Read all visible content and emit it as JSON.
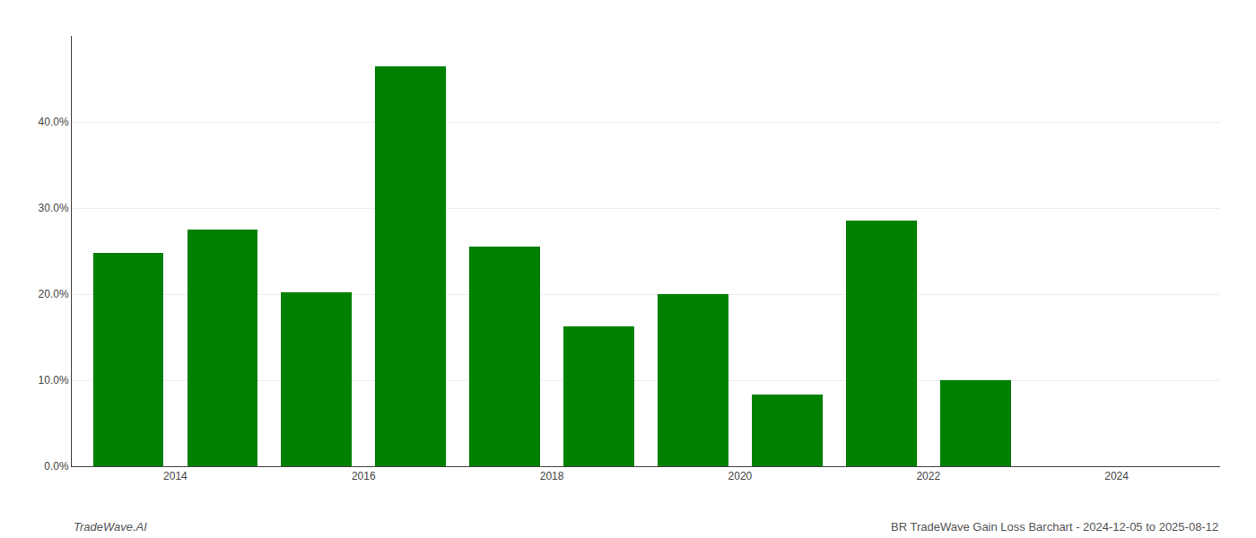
{
  "chart_data": {
    "type": "bar",
    "x": [
      2013,
      2014,
      2015,
      2016,
      2017,
      2018,
      2019,
      2020,
      2021,
      2022
    ],
    "values": [
      0.248,
      0.275,
      0.202,
      0.465,
      0.255,
      0.163,
      0.2,
      0.083,
      0.285,
      0.1
    ],
    "color": "#008000",
    "xlim": [
      2012.4,
      2024.6
    ],
    "xticks": [
      {
        "value": 2013.5,
        "label": "2014"
      },
      {
        "value": 2015.5,
        "label": "2016"
      },
      {
        "value": 2017.5,
        "label": "2018"
      },
      {
        "value": 2019.5,
        "label": "2020"
      },
      {
        "value": 2021.5,
        "label": "2022"
      },
      {
        "value": 2023.5,
        "label": "2024"
      }
    ],
    "ylim": [
      0,
      0.5
    ],
    "yticks": [
      {
        "value": 0.0,
        "label": "0.0%"
      },
      {
        "value": 0.1,
        "label": "10.0%"
      },
      {
        "value": 0.2,
        "label": "20.0%"
      },
      {
        "value": 0.3,
        "label": "30.0%"
      },
      {
        "value": 0.4,
        "label": "40.0%"
      }
    ],
    "grid": true,
    "annotations": [
      "TradeWave.AI",
      "BR TradeWave Gain Loss Barchart - 2024-12-05 to 2025-08-12"
    ]
  }
}
